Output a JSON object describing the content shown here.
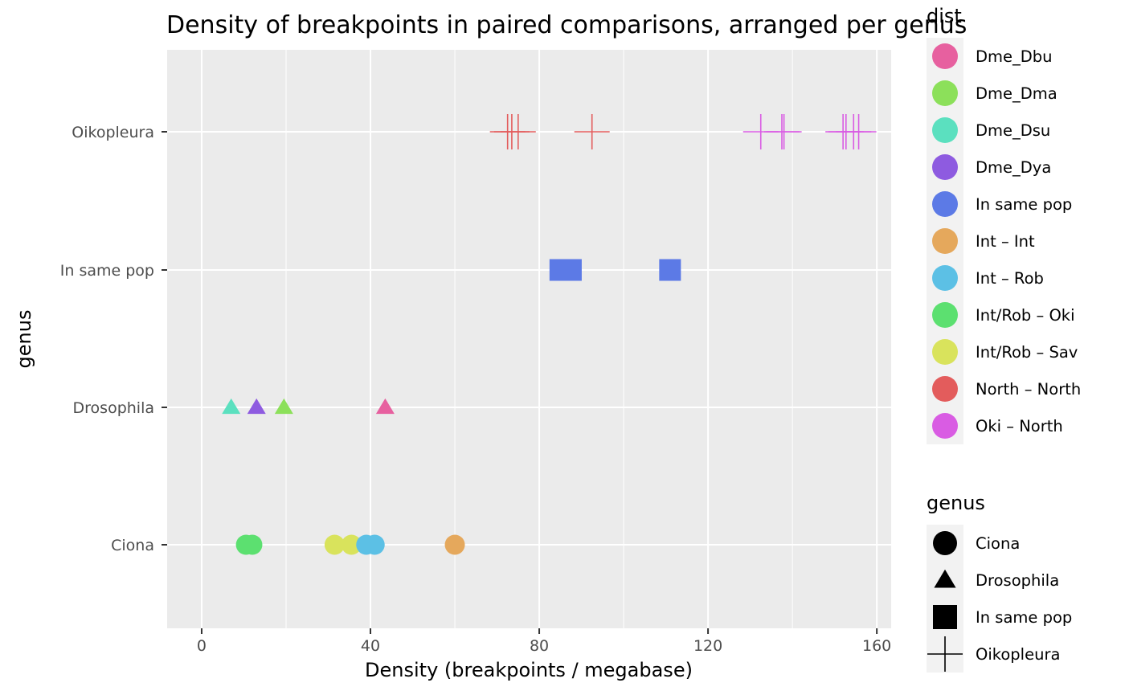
{
  "chart_data": {
    "type": "scatter",
    "title": "Density of breakpoints in paired comparisons, arranged per genus",
    "xlabel": "Density (breakpoints / megabase)",
    "ylabel": "genus",
    "xlim": [
      0,
      163
    ],
    "xticks": [
      0,
      40,
      80,
      120,
      160
    ],
    "categories": [
      "Ciona",
      "Drosophila",
      "In same pop",
      "Oikopleura"
    ],
    "grid": true,
    "legend_position": "right",
    "shape_by_genus": {
      "Ciona": "circle",
      "Drosophila": "triangle",
      "In same pop": "square",
      "Oikopleura": "cross"
    },
    "dist_legend": {
      "title": "dist",
      "entries": [
        {
          "name": "Dme_Dbu",
          "color": "#E7609F"
        },
        {
          "name": "Dme_Dma",
          "color": "#8CE05A"
        },
        {
          "name": "Dme_Dsu",
          "color": "#5BE0BF"
        },
        {
          "name": "Dme_Dya",
          "color": "#8E5BE0"
        },
        {
          "name": "In same pop",
          "color": "#5C7AE6"
        },
        {
          "name": "Int – Int",
          "color": "#E5A85C"
        },
        {
          "name": "Int – Rob",
          "color": "#5CC0E5"
        },
        {
          "name": "Int/Rob – Oki",
          "color": "#5CE070"
        },
        {
          "name": "Int/Rob – Sav",
          "color": "#D9E35C"
        },
        {
          "name": "North – North",
          "color": "#E35C5C"
        },
        {
          "name": "Oki – North",
          "color": "#D95CE3"
        }
      ]
    },
    "genus_legend": {
      "title": "genus",
      "entries": [
        {
          "name": "Ciona",
          "shape": "circle"
        },
        {
          "name": "Drosophila",
          "shape": "triangle"
        },
        {
          "name": "In same pop",
          "shape": "square"
        },
        {
          "name": "Oikopleura",
          "shape": "cross"
        }
      ]
    },
    "points": [
      {
        "genus": "Ciona",
        "dist": "Int/Rob – Oki",
        "x": 10.5
      },
      {
        "genus": "Ciona",
        "dist": "Int/Rob – Oki",
        "x": 12.0
      },
      {
        "genus": "Ciona",
        "dist": "Int/Rob – Sav",
        "x": 31.5
      },
      {
        "genus": "Ciona",
        "dist": "Int/Rob – Sav",
        "x": 35.5
      },
      {
        "genus": "Ciona",
        "dist": "Int – Rob",
        "x": 39.0
      },
      {
        "genus": "Ciona",
        "dist": "Int – Rob",
        "x": 41.0
      },
      {
        "genus": "Ciona",
        "dist": "Int – Int",
        "x": 60.0
      },
      {
        "genus": "Drosophila",
        "dist": "Dme_Dsu",
        "x": 7.0
      },
      {
        "genus": "Drosophila",
        "dist": "Dme_Dya",
        "x": 13.0
      },
      {
        "genus": "Drosophila",
        "dist": "Dme_Dma",
        "x": 19.5
      },
      {
        "genus": "Drosophila",
        "dist": "Dme_Dbu",
        "x": 43.5
      },
      {
        "genus": "In same pop",
        "dist": "In same pop",
        "x": 85.0
      },
      {
        "genus": "In same pop",
        "dist": "In same pop",
        "x": 86.0
      },
      {
        "genus": "In same pop",
        "dist": "In same pop",
        "x": 87.5
      },
      {
        "genus": "In same pop",
        "dist": "In same pop",
        "x": 111.0
      },
      {
        "genus": "Oikopleura",
        "dist": "North – North",
        "x": 72.5
      },
      {
        "genus": "Oikopleura",
        "dist": "North – North",
        "x": 73.5
      },
      {
        "genus": "Oikopleura",
        "dist": "North – North",
        "x": 75.0
      },
      {
        "genus": "Oikopleura",
        "dist": "North – North",
        "x": 92.5
      },
      {
        "genus": "Oikopleura",
        "dist": "Oki – North",
        "x": 132.5
      },
      {
        "genus": "Oikopleura",
        "dist": "Oki – North",
        "x": 137.5
      },
      {
        "genus": "Oikopleura",
        "dist": "Oki – North",
        "x": 138.0
      },
      {
        "genus": "Oikopleura",
        "dist": "Oki – North",
        "x": 152.0
      },
      {
        "genus": "Oikopleura",
        "dist": "Oki – North",
        "x": 152.7
      },
      {
        "genus": "Oikopleura",
        "dist": "Oki – North",
        "x": 154.5
      },
      {
        "genus": "Oikopleura",
        "dist": "Oki – North",
        "x": 155.7
      }
    ]
  }
}
